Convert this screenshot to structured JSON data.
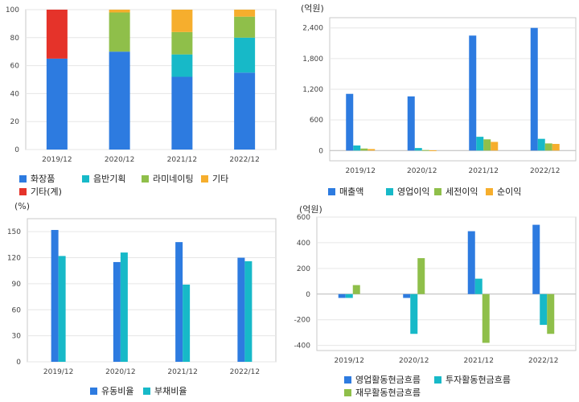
{
  "chart_data": [
    {
      "type": "bar",
      "stacked": true,
      "categories": [
        "2019/12",
        "2020/12",
        "2021/12",
        "2022/12"
      ],
      "series": [
        {
          "name": "화장품",
          "color": "#2d7be0",
          "values": [
            65,
            70,
            52,
            55
          ]
        },
        {
          "name": "음반기획",
          "color": "#17b9c8",
          "values": [
            0,
            0,
            16,
            25
          ]
        },
        {
          "name": "라미네이팅",
          "color": "#8fbf4a",
          "values": [
            0,
            28,
            16,
            15
          ]
        },
        {
          "name": "기타",
          "color": "#f6ae2d",
          "values": [
            0,
            2,
            16,
            5
          ]
        },
        {
          "name": "기타(계)",
          "color": "#e5332a",
          "values": [
            35,
            0,
            0,
            0
          ]
        }
      ],
      "ylim": [
        0,
        100
      ],
      "yticks": [
        0,
        20,
        40,
        60,
        80,
        100
      ],
      "grid": true
    },
    {
      "type": "bar",
      "unit_label": "(억원)",
      "categories": [
        "2019/12",
        "2020/12",
        "2021/12",
        "2022/12"
      ],
      "series": [
        {
          "name": "매출액",
          "color": "#2d7be0",
          "values": [
            1110,
            1060,
            2250,
            2400
          ]
        },
        {
          "name": "영업이익",
          "color": "#17b9c8",
          "values": [
            100,
            50,
            270,
            230
          ]
        },
        {
          "name": "세전이익",
          "color": "#8fbf4a",
          "values": [
            40,
            10,
            220,
            140
          ]
        },
        {
          "name": "순이익",
          "color": "#f6ae2d",
          "values": [
            30,
            5,
            170,
            130
          ]
        }
      ],
      "ylim": [
        -200,
        2600
      ],
      "yticks": [
        0,
        600,
        1200,
        1800,
        2400
      ],
      "ytick_labels": [
        "0",
        "600",
        "1,200",
        "1,800",
        "2,400"
      ],
      "grid": true
    },
    {
      "type": "bar",
      "unit_label": "(%)",
      "categories": [
        "2019/12",
        "2020/12",
        "2021/12",
        "2022/12"
      ],
      "series": [
        {
          "name": "유동비율",
          "color": "#2d7be0",
          "values": [
            152,
            115,
            138,
            120
          ]
        },
        {
          "name": "부채비율",
          "color": "#17b9c8",
          "values": [
            122,
            126,
            89,
            116
          ]
        }
      ],
      "ylim": [
        0,
        165
      ],
      "yticks": [
        0,
        30,
        60,
        90,
        120,
        150
      ],
      "grid": true
    },
    {
      "type": "bar",
      "unit_label": "(억원)",
      "categories": [
        "2019/12",
        "2020/12",
        "2021/12",
        "2022/12"
      ],
      "series": [
        {
          "name": "영업활동현금흐름",
          "color": "#2d7be0",
          "values": [
            -30,
            -30,
            490,
            540
          ]
        },
        {
          "name": "투자활동현금흐름",
          "color": "#17b9c8",
          "values": [
            -30,
            -310,
            120,
            -240
          ]
        },
        {
          "name": "재무활동현금흐름",
          "color": "#8fbf4a",
          "values": [
            70,
            280,
            -380,
            -310
          ]
        }
      ],
      "ylim": [
        -440,
        600
      ],
      "yticks": [
        -400,
        -200,
        0,
        200,
        400,
        600
      ],
      "grid": true
    }
  ]
}
